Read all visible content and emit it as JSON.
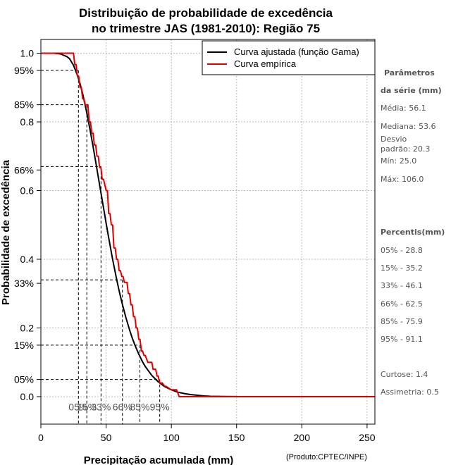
{
  "chart_data": {
    "type": "line",
    "title_line1": "Distribuição de probabilidade de excedência",
    "title_line2": "no trimestre JAS (1981-2010): Região 75",
    "xlabel": "Precipitação acumulada (mm)",
    "ylabel": "Probabilidade de excedência",
    "credit": "(Produto:CPTEC/INPE)",
    "xlim": [
      0,
      256
    ],
    "ylim": [
      -0.08,
      1.04
    ],
    "x_ticks": [
      0,
      50,
      100,
      150,
      200,
      250
    ],
    "x_tick_labels": [
      "0",
      "50",
      "100",
      "150",
      "200",
      "250"
    ],
    "y_ticks": [
      {
        "value": 1.0,
        "label": "1.0"
      },
      {
        "value": 0.95,
        "label": "95%"
      },
      {
        "value": 0.85,
        "label": "85%"
      },
      {
        "value": 0.8,
        "label": "0.8"
      },
      {
        "value": 0.66,
        "label": "66%"
      },
      {
        "value": 0.6,
        "label": "0.6"
      },
      {
        "value": 0.4,
        "label": "0.4"
      },
      {
        "value": 0.33,
        "label": "33%"
      },
      {
        "value": 0.2,
        "label": "0.2"
      },
      {
        "value": 0.15,
        "label": "15%"
      },
      {
        "value": 0.05,
        "label": "05%"
      },
      {
        "value": 0.0,
        "label": "0.0"
      }
    ],
    "grid": true,
    "legend": {
      "position": "top-right",
      "entries": [
        {
          "name": "Curva ajustada (função Gama)",
          "color": "#000000"
        },
        {
          "name": "Curva empírica",
          "color": "#dd0000"
        }
      ]
    },
    "series": [
      {
        "name": "Curva ajustada (função Gama)",
        "color": "#000000",
        "x": [
          0,
          5,
          10,
          15,
          20,
          22,
          25,
          28,
          30,
          32,
          35,
          38,
          40,
          42,
          45,
          48,
          50,
          52,
          55,
          58,
          60,
          62,
          65,
          68,
          70,
          72,
          75,
          78,
          80,
          85,
          90,
          95,
          100,
          105,
          110,
          115,
          120,
          125,
          130,
          140,
          150
        ],
        "y": [
          1.0,
          1.0,
          1.0,
          0.998,
          0.99,
          0.984,
          0.965,
          0.936,
          0.912,
          0.882,
          0.83,
          0.77,
          0.728,
          0.684,
          0.617,
          0.55,
          0.505,
          0.462,
          0.4,
          0.343,
          0.308,
          0.276,
          0.232,
          0.194,
          0.171,
          0.151,
          0.124,
          0.101,
          0.088,
          0.062,
          0.043,
          0.029,
          0.02,
          0.013,
          0.009,
          0.006,
          0.004,
          0.002,
          0.001,
          0.0005,
          0.0002
        ]
      },
      {
        "name": "Curva empírica",
        "color": "#dd0000",
        "x": [
          0,
          25,
          26,
          27,
          28,
          29,
          30,
          31,
          32,
          33,
          34,
          36,
          37,
          38,
          39,
          40,
          41,
          42,
          43,
          44,
          45,
          46,
          47,
          48,
          50,
          51,
          52,
          53,
          54,
          55,
          56,
          57,
          58,
          59,
          60,
          61,
          62,
          63,
          64,
          66,
          67,
          68,
          69,
          70,
          71,
          72,
          73,
          74,
          75,
          76,
          77,
          78,
          79,
          80,
          82,
          85,
          86,
          88,
          89,
          90,
          91,
          93,
          95,
          96,
          100,
          104,
          106,
          256
        ],
        "y": [
          1.0,
          1.0,
          0.967,
          0.967,
          0.933,
          0.933,
          0.9,
          0.9,
          0.867,
          0.867,
          0.85,
          0.85,
          0.8,
          0.8,
          0.767,
          0.767,
          0.733,
          0.733,
          0.7,
          0.7,
          0.667,
          0.667,
          0.633,
          0.633,
          0.6,
          0.6,
          0.533,
          0.533,
          0.5,
          0.5,
          0.433,
          0.433,
          0.4,
          0.4,
          0.367,
          0.367,
          0.35,
          0.35,
          0.333,
          0.333,
          0.3,
          0.3,
          0.267,
          0.267,
          0.233,
          0.233,
          0.2,
          0.2,
          0.167,
          0.167,
          0.133,
          0.133,
          0.12,
          0.12,
          0.1,
          0.1,
          0.08,
          0.08,
          0.06,
          0.06,
          0.04,
          0.04,
          0.03,
          0.03,
          0.02,
          0.02,
          0.0,
          0.0
        ]
      }
    ],
    "percentile_markers": [
      {
        "pct": 0.05,
        "x": 28.8,
        "label": "05%"
      },
      {
        "pct": 0.15,
        "x": 35.2,
        "label": "15%"
      },
      {
        "pct": 0.33,
        "x": 46.1,
        "label": "33%"
      },
      {
        "pct": 0.66,
        "x": 62.5,
        "label": "66%"
      },
      {
        "pct": 0.85,
        "x": 75.9,
        "label": "85%"
      },
      {
        "pct": 0.95,
        "x": 91.1,
        "label": "95%"
      }
    ]
  },
  "side_panel": {
    "params_head1": "Parâmetros",
    "params_head2": "da série (mm)",
    "media": "Média: 56.1",
    "mediana": "Mediana: 53.6",
    "desvio1": "Desvio",
    "desvio2": "padrão: 20.3",
    "min": "Mín: 25.0",
    "max": "Máx: 106.0",
    "percentis_head": "Percentis(mm)",
    "p05": "05% - 28.8",
    "p15": "15% - 35.2",
    "p33": "33% - 46.1",
    "p66": "66% - 62.5",
    "p85": "85% - 75.9",
    "p95": "95% - 91.1",
    "curtose": "Curtose: 1.4",
    "assimetria": "Assimetria: 0.5"
  }
}
